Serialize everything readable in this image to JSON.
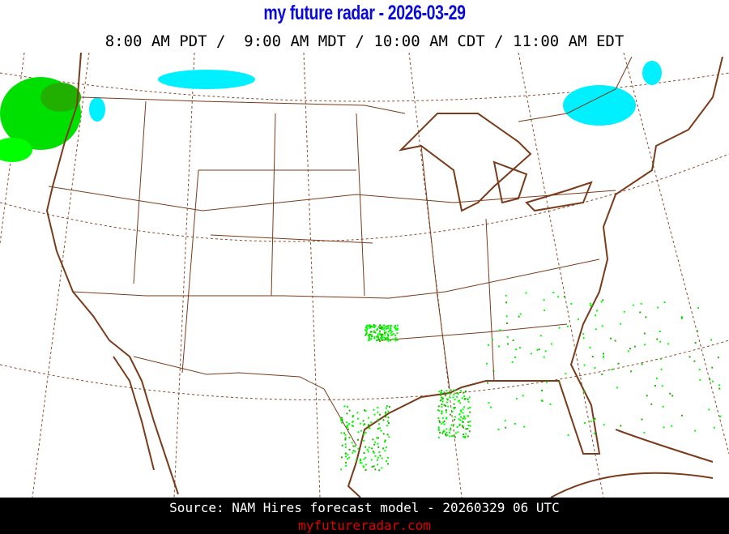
{
  "header": {
    "title": "my future radar - 2026-03-29",
    "times": "8:00 AM PDT /  9:00 AM MDT / 10:00 AM CDT / 11:00 AM EDT"
  },
  "map": {
    "region": "Continental United States",
    "colors": {
      "border": "#7a3b1a",
      "rain_light": "#00ff00",
      "rain_moderate": "#22b000",
      "snow": "#00f0ff"
    }
  },
  "footer": {
    "source": "Source: NAM Hires forecast model - 20260329 06 UTC",
    "site": "myfutureradar.com"
  }
}
